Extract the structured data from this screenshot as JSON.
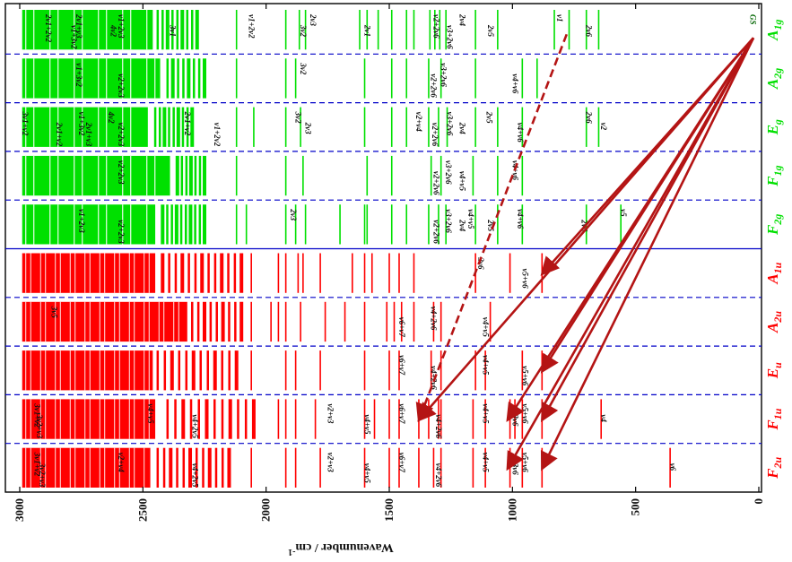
{
  "chart_data": {
    "type": "energy-level-diagram",
    "axis": {
      "label": "Wavenumber / cm",
      "superscript": "-1",
      "range": [
        0,
        3000
      ],
      "ticks": [
        0,
        500,
        1000,
        1500,
        2000,
        2500,
        3000
      ]
    },
    "colors": {
      "gerade": "#00e000",
      "ungerade": "#ff0000",
      "separator": "#0000c8",
      "arrow": "#b41414",
      "dashed": "#1b1bd8"
    },
    "symmetry_columns": [
      {
        "name": "A",
        "sub": "1g",
        "parity": "g",
        "dense": [
          [
            2460,
            2990
          ]
        ],
        "bands": [
          [
            2280,
            2440,
            9
          ]
        ],
        "lines": [
          2120,
          1920,
          1865,
          1840,
          1620,
          1590,
          1545,
          1490,
          1430,
          1400,
          1335,
          1315,
          1295,
          1270,
          1150,
          1060,
          830,
          770,
          700,
          650
        ],
        "labels": [
          {
            "w": 2895,
            "t": "2ν1+2ν2"
          },
          {
            "w": 2790,
            "t": "ν1+3ν2"
          },
          {
            "w": 2770,
            "t": "2ν1+ν3"
          },
          {
            "w": 2630,
            "t": "4ν2"
          },
          {
            "w": 2600,
            "t": "ν1+2ν3"
          },
          {
            "w": 2390,
            "t": "3ν1"
          },
          {
            "w": 2070,
            "t": "ν1+2ν2"
          },
          {
            "w": 1860,
            "t": "3ν2"
          },
          {
            "w": 1820,
            "t": "2ν3"
          },
          {
            "w": 1600,
            "t": "2ν1"
          },
          {
            "w": 1320,
            "t": "ν2+2ν6"
          },
          {
            "w": 1265,
            "t": "ν3+2ν6"
          },
          {
            "w": 1215,
            "t": "2ν4"
          },
          {
            "w": 1100,
            "t": "2ν5"
          },
          {
            "w": 820,
            "t": "ν1"
          },
          {
            "w": 700,
            "t": "2ν6"
          },
          {
            "w": 35,
            "t": "GS"
          }
        ]
      },
      {
        "name": "A",
        "sub": "2g",
        "parity": "g",
        "dense": [
          [
            2430,
            2990
          ]
        ],
        "bands": [
          [
            2250,
            2400,
            8
          ]
        ],
        "lines": [
          2120,
          1920,
          1880,
          1600,
          1490,
          1430,
          1340,
          1290,
          1150,
          960,
          900
        ],
        "labels": [
          {
            "w": 2770,
            "t": "ν1+3ν2"
          },
          {
            "w": 2600,
            "t": "ν2+2ν3"
          },
          {
            "w": 1860,
            "t": "3ν2"
          },
          {
            "w": 1330,
            "t": "ν2+2ν6"
          },
          {
            "w": 1290,
            "t": "ν3+2ν6"
          },
          {
            "w": 1000,
            "t": "ν4+ν6"
          }
        ]
      },
      {
        "name": "E",
        "sub": "g",
        "parity": "g",
        "dense": [
          [
            2480,
            2990
          ]
        ],
        "bands": [
          [
            2300,
            2450,
            9
          ]
        ],
        "lines": [
          2120,
          2050,
          1920,
          1860,
          1600,
          1490,
          1430,
          1340,
          1300,
          1265,
          1150,
          1060,
          960,
          700,
          650
        ],
        "labels": [
          {
            "w": 2990,
            "t": "3ν1+ν2"
          },
          {
            "w": 2850,
            "t": "2ν1+ν2"
          },
          {
            "w": 2760,
            "t": "ν1+3ν2"
          },
          {
            "w": 2730,
            "t": "2ν1+ν3"
          },
          {
            "w": 2640,
            "t": "4ν2"
          },
          {
            "w": 2600,
            "t": "ν2+2ν3"
          },
          {
            "w": 2330,
            "t": "2ν1+ν2"
          },
          {
            "w": 2210,
            "t": "ν1+2ν2"
          },
          {
            "w": 1880,
            "t": "3ν2"
          },
          {
            "w": 1840,
            "t": "2ν3"
          },
          {
            "w": 1390,
            "t": "ν2+ν4"
          },
          {
            "w": 1325,
            "t": "ν2+2ν6"
          },
          {
            "w": 1265,
            "t": "ν3+2ν6"
          },
          {
            "w": 1215,
            "t": "2ν4"
          },
          {
            "w": 1105,
            "t": "2ν5"
          },
          {
            "w": 980,
            "t": "ν4+ν6"
          },
          {
            "w": 700,
            "t": "2ν6"
          },
          {
            "w": 640,
            "t": "ν2"
          }
        ]
      },
      {
        "name": "F",
        "sub": "1g",
        "parity": "g",
        "dense": [
          [
            2390,
            2990
          ]
        ],
        "bands": [
          [
            2250,
            2360,
            7
          ]
        ],
        "lines": [
          2120,
          1920,
          1850,
          1590,
          1490,
          1330,
          1290,
          1160,
          1060,
          960
        ],
        "labels": [
          {
            "w": 2600,
            "t": "ν2+2ν3"
          },
          {
            "w": 1320,
            "t": "ν2+2ν6"
          },
          {
            "w": 1270,
            "t": "ν3+2ν6"
          },
          {
            "w": 1215,
            "t": "ν4+ν5"
          },
          {
            "w": 1000,
            "t": "ν4+ν6"
          }
        ]
      },
      {
        "name": "F",
        "sub": "2g",
        "parity": "g",
        "dense": [
          [
            2450,
            2990
          ]
        ],
        "bands": [
          [
            2250,
            2420,
            10
          ]
        ],
        "lines": [
          2120,
          2080,
          1920,
          1880,
          1840,
          1700,
          1600,
          1590,
          1490,
          1430,
          1340,
          1300,
          1270,
          1150,
          1060,
          960,
          700,
          560
        ],
        "labels": [
          {
            "w": 2760,
            "t": "ν1+2ν3"
          },
          {
            "w": 2600,
            "t": "ν2+2ν3"
          },
          {
            "w": 1900,
            "t": "2ν3"
          },
          {
            "w": 1320,
            "t": "ν2+2ν6"
          },
          {
            "w": 1270,
            "t": "ν3+2ν6"
          },
          {
            "w": 1215,
            "t": "2ν4"
          },
          {
            "w": 1180,
            "t": "ν4+ν5"
          },
          {
            "w": 1100,
            "t": "2ν5"
          },
          {
            "w": 980,
            "t": "ν4+ν6"
          },
          {
            "w": 720,
            "t": "2ν6"
          },
          {
            "w": 560,
            "t": "ν5"
          }
        ]
      },
      {
        "name": "A",
        "sub": "1u",
        "parity": "u",
        "dense": [
          [
            2450,
            2990
          ]
        ],
        "bands": [
          [
            2100,
            2420,
            13
          ]
        ],
        "lines": [
          2060,
          1950,
          1920,
          1870,
          1850,
          1780,
          1650,
          1600,
          1570,
          1500,
          1460,
          1400,
          1150,
          1010,
          880
        ],
        "labels": [
          {
            "w": 1140,
            "t": "3ν6"
          },
          {
            "w": 960,
            "t": "ν5+ν6"
          }
        ]
      },
      {
        "name": "A",
        "sub": "2u",
        "parity": "u",
        "dense": [
          [
            2320,
            2990
          ]
        ],
        "bands": [
          [
            2100,
            2300,
            9
          ]
        ],
        "lines": [
          2060,
          1980,
          1950,
          1920,
          1860,
          1760,
          1680,
          1600,
          1510,
          1480,
          1450,
          1400,
          1320,
          1290,
          1090
        ],
        "labels": [
          {
            "w": 2870,
            "t": "3ν5"
          },
          {
            "w": 1460,
            "t": "ν6+ν7"
          },
          {
            "w": 1330,
            "t": "ν4+2ν6"
          },
          {
            "w": 1120,
            "t": "ν4+ν5"
          }
        ]
      },
      {
        "name": "E",
        "sub": "u",
        "parity": "u",
        "dense": [
          [
            2460,
            2990
          ]
        ],
        "bands": [
          [
            2120,
            2440,
            12
          ]
        ],
        "lines": [
          2060,
          1920,
          1880,
          1780,
          1600,
          1500,
          1460,
          1330,
          1290,
          1150,
          1110,
          960,
          880
        ],
        "labels": [
          {
            "w": 1460,
            "t": "ν6+ν7"
          },
          {
            "w": 1330,
            "t": "ν4+2ν6"
          },
          {
            "w": 1120,
            "t": "ν4+ν5"
          },
          {
            "w": 960,
            "t": "ν5+ν6"
          }
        ]
      },
      {
        "name": "F",
        "sub": "1u",
        "parity": "u",
        "dense": [
          [
            2450,
            2990
          ]
        ],
        "bands": [
          [
            2050,
            2400,
            12
          ]
        ],
        "lines": [
          1950,
          1920,
          1880,
          1800,
          1600,
          1560,
          1500,
          1460,
          1380,
          1340,
          1300,
          1290,
          1160,
          1110,
          1010,
          990,
          960,
          880,
          640
        ],
        "labels": [
          {
            "w": 2940,
            "t": "3ν1+ν2"
          },
          {
            "w": 2930,
            "t": "3ν2+ν3"
          },
          {
            "w": 2480,
            "t": "ν4+ν5"
          },
          {
            "w": 2300,
            "t": "ν4+2ν5"
          },
          {
            "w": 1750,
            "t": "ν2+ν3"
          },
          {
            "w": 1600,
            "t": "ν4+ν5"
          },
          {
            "w": 1460,
            "t": "ν6+ν7"
          },
          {
            "w": 1310,
            "t": "ν4+2ν6"
          },
          {
            "w": 1120,
            "t": "ν4+ν5"
          },
          {
            "w": 1000,
            "t": "3ν6"
          },
          {
            "w": 960,
            "t": "ν5+ν6"
          },
          {
            "w": 640,
            "t": "ν4"
          }
        ]
      },
      {
        "name": "F",
        "sub": "2u",
        "parity": "u",
        "dense": [
          [
            2470,
            2990
          ]
        ],
        "bands": [
          [
            2150,
            2440,
            12
          ]
        ],
        "lines": [
          2060,
          1920,
          1880,
          1780,
          1600,
          1500,
          1460,
          1380,
          1320,
          1290,
          1160,
          1110,
          1010,
          960,
          880,
          360
        ],
        "labels": [
          {
            "w": 2940,
            "t": "3ν1+ν2"
          },
          {
            "w": 2920,
            "t": "3ν2+ν3"
          },
          {
            "w": 2600,
            "t": "ν2+ν4"
          },
          {
            "w": 2300,
            "t": "ν4+2ν5"
          },
          {
            "w": 1750,
            "t": "ν2+ν3"
          },
          {
            "w": 1600,
            "t": "ν4+ν5"
          },
          {
            "w": 1460,
            "t": "ν6+ν7"
          },
          {
            "w": 1310,
            "t": "ν4+2ν6"
          },
          {
            "w": 1120,
            "t": "ν4+ν5"
          },
          {
            "w": 1000,
            "t": "3ν6"
          },
          {
            "w": 960,
            "t": "ν5+ν6"
          },
          {
            "w": 360,
            "t": "ν6"
          }
        ]
      }
    ],
    "origin_label": "GS",
    "transitions": [
      {
        "to_column": 5,
        "w": 880,
        "style": "solid"
      },
      {
        "to_column": 7,
        "w": 880,
        "style": "solid"
      },
      {
        "to_column": 8,
        "w": 880,
        "style": "solid"
      },
      {
        "to_column": 8,
        "w": 1020,
        "style": "solid"
      },
      {
        "to_column": 8,
        "w": 1380,
        "style": "solid"
      },
      {
        "to_column": 9,
        "w": 880,
        "style": "solid"
      },
      {
        "to_column": 9,
        "w": 1020,
        "style": "solid"
      },
      {
        "to_column": 8,
        "w": 1380,
        "from_column": 0,
        "from_w": 780,
        "style": "dashed"
      }
    ]
  }
}
